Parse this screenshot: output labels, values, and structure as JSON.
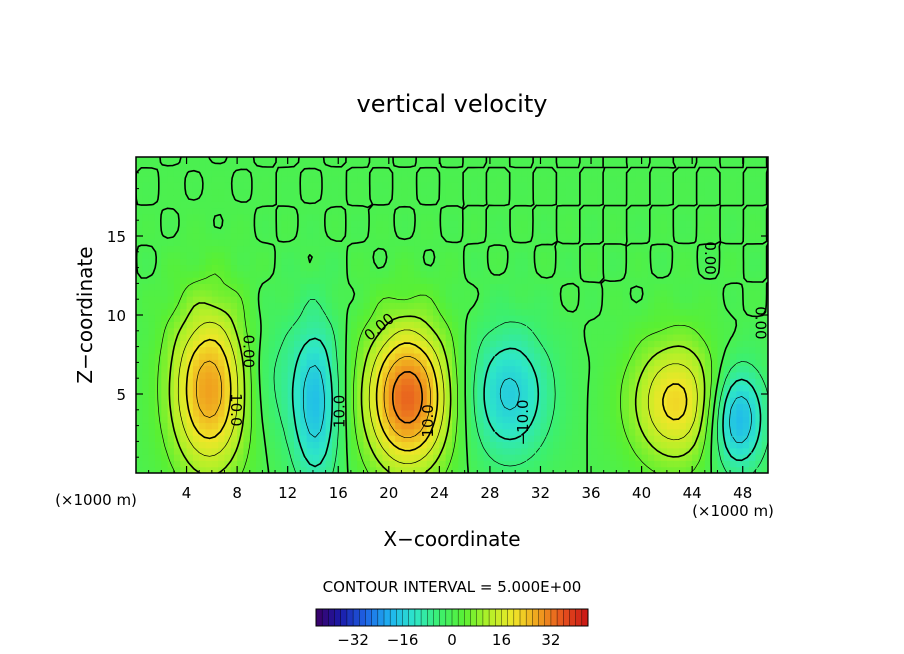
{
  "chart_data": {
    "type": "heatmap",
    "title": "vertical velocity",
    "xlabel": "X−coordinate",
    "ylabel": "Z−coordinate",
    "x_unit_left": "(×1000 m)",
    "x_unit_right": "(×1000 m)",
    "xlim": [
      0,
      50
    ],
    "ylim": [
      0,
      20
    ],
    "x_ticks": [
      4,
      8,
      12,
      16,
      20,
      24,
      28,
      32,
      36,
      40,
      44,
      48
    ],
    "y_ticks": [
      5,
      10,
      15
    ],
    "x_tick_labels": [
      "4",
      "8",
      "12",
      "16",
      "20",
      "24",
      "28",
      "32",
      "36",
      "40",
      "44",
      "48"
    ],
    "y_tick_labels": [
      "5",
      "10",
      "15"
    ],
    "contour_interval_text": "CONTOUR INTERVAL = 5.000E+00",
    "contour_labels": [
      {
        "text": "10.0",
        "x": 7.5,
        "y": 4.0,
        "rotation": 90
      },
      {
        "text": "0.00",
        "x": 8.5,
        "y": 7.7,
        "rotation": 90
      },
      {
        "text": "10.0",
        "x": 16.5,
        "y": 3.9,
        "rotation": -90
      },
      {
        "text": "0.00",
        "x": 19.5,
        "y": 9.0,
        "rotation": -40
      },
      {
        "text": "10.0",
        "x": 23.5,
        "y": 3.3,
        "rotation": -90
      },
      {
        "text": "−10.0",
        "x": 31.0,
        "y": 3.2,
        "rotation": -90
      },
      {
        "text": "0.00",
        "x": 45.0,
        "y": 13.6,
        "rotation": 90
      },
      {
        "text": "0.00",
        "x": 49.0,
        "y": 9.5,
        "rotation": 90
      }
    ],
    "field_centers": [
      {
        "x": 5.8,
        "z": 5.3,
        "amp": 28,
        "sx": 2.2,
        "sz": 3.8
      },
      {
        "x": 21.5,
        "z": 4.8,
        "amp": 34,
        "sx": 2.4,
        "sz": 3.3
      },
      {
        "x": 42.8,
        "z": 4.5,
        "amp": 22,
        "sx": 2.6,
        "sz": 2.8
      },
      {
        "x": 14.2,
        "z": 4.5,
        "amp": -18,
        "sx": 1.4,
        "sz": 3.8
      },
      {
        "x": 29.5,
        "z": 5.0,
        "amp": -16,
        "sx": 2.4,
        "sz": 3.0
      },
      {
        "x": 47.5,
        "z": 3.5,
        "amp": -22,
        "sx": 1.6,
        "sz": 2.4
      },
      {
        "x": 10.5,
        "z": 6.0,
        "amp": -6,
        "sx": 1.5,
        "sz": 3.0
      }
    ],
    "colorbar": {
      "range": [
        -44,
        44
      ],
      "ticks": [
        -32,
        -16,
        0,
        16,
        32
      ],
      "tick_labels": [
        "−32",
        "−16",
        "0",
        "16",
        "32"
      ],
      "colors": [
        "#3b0066",
        "#1a1aa8",
        "#1e64e6",
        "#1eb4f0",
        "#2ee6c8",
        "#3cf06e",
        "#5af032",
        "#b4f028",
        "#f0e628",
        "#f0a01e",
        "#e6501e",
        "#c81414"
      ]
    }
  }
}
